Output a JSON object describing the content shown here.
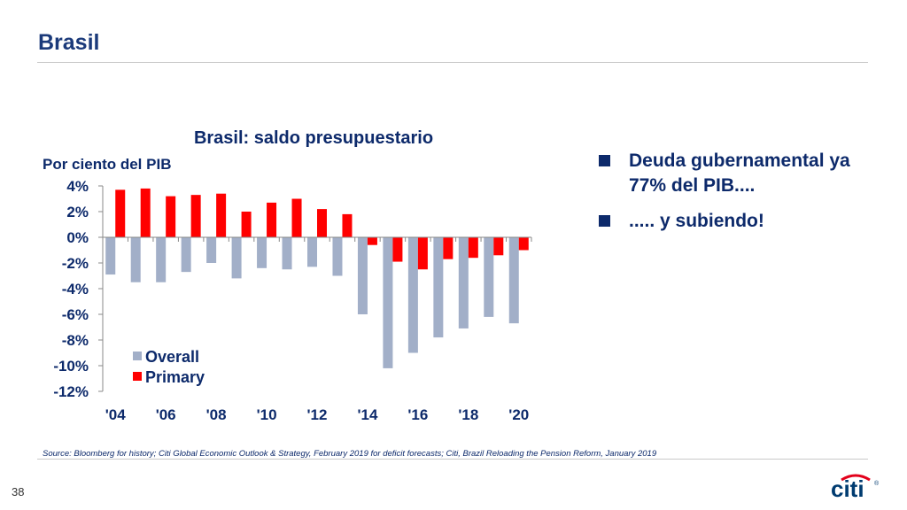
{
  "slide": {
    "title": "Brasil",
    "page_number": "38",
    "logo_text": "citi"
  },
  "bullets": [
    {
      "text": "Deuda gubernamental ya 77% del PIB...."
    },
    {
      "text": "..... y subiendo!"
    }
  ],
  "source": "Source: Bloomberg for history; Citi Global Economic Outlook & Strategy, February 2019 for deficit forecasts; Citi, Brazil Reloading the Pension Reform, January 2019",
  "chart_data": {
    "type": "bar",
    "title": "Brasil: saldo presupuestario",
    "ylabel": "Por ciento del PIB",
    "xlabel": "",
    "categories": [
      "2004",
      "2005",
      "2006",
      "2007",
      "2008",
      "2009",
      "2010",
      "2011",
      "2012",
      "2013",
      "2014",
      "2015",
      "2016",
      "2017",
      "2018",
      "2019",
      "2020"
    ],
    "x_tick_labels": [
      "'04",
      "'06",
      "'08",
      "'10",
      "'12",
      "'14",
      "'16",
      "'18",
      "'20"
    ],
    "y_tick_labels": [
      "4%",
      "2%",
      "0%",
      "-2%",
      "-4%",
      "-6%",
      "-8%",
      "-10%",
      "-12%"
    ],
    "ylim": [
      -12,
      4
    ],
    "y_ticks": [
      4,
      2,
      0,
      -2,
      -4,
      -6,
      -8,
      -10,
      -12
    ],
    "grid": false,
    "legend_placement": "bottom-left",
    "series": [
      {
        "name": "Overall",
        "color": "#a2afc8",
        "values": [
          -2.9,
          -3.5,
          -3.5,
          -2.7,
          -2.0,
          -3.2,
          -2.4,
          -2.5,
          -2.3,
          -3.0,
          -6.0,
          -10.2,
          -9.0,
          -7.8,
          -7.1,
          -6.2,
          -6.7
        ]
      },
      {
        "name": "Primary",
        "color": "#ff0000",
        "values": [
          3.7,
          3.8,
          3.2,
          3.3,
          3.4,
          2.0,
          2.7,
          3.0,
          2.2,
          1.8,
          -0.6,
          -1.9,
          -2.5,
          -1.7,
          -1.6,
          -1.4,
          -1.0
        ]
      }
    ]
  }
}
